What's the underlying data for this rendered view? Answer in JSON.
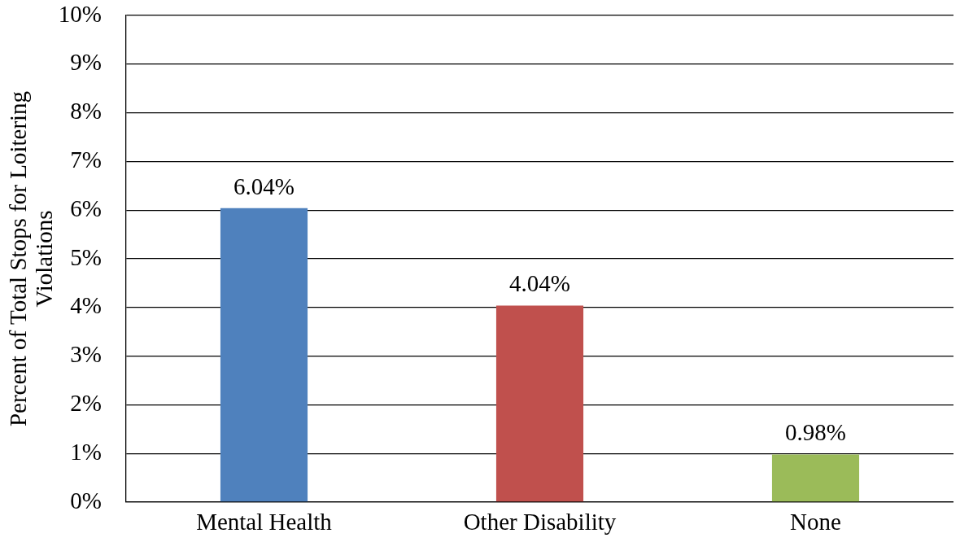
{
  "chart_data": {
    "type": "bar",
    "ylabel": "Percent of Total Stops for Loitering\nViolations",
    "categories": [
      "Mental Health",
      "Other Disability",
      "None"
    ],
    "values": [
      6.04,
      4.04,
      0.98
    ],
    "colors": [
      "#4f81bd",
      "#c0504d",
      "#9bbb59"
    ],
    "value_labels": [
      "6.04%",
      "4.04%",
      "0.98%"
    ],
    "ylim": [
      0,
      10
    ],
    "yticks": [
      {
        "value": 0,
        "label": "0%"
      },
      {
        "value": 1,
        "label": "1%"
      },
      {
        "value": 2,
        "label": "2%"
      },
      {
        "value": 3,
        "label": "3%"
      },
      {
        "value": 4,
        "label": "4%"
      },
      {
        "value": 5,
        "label": "5%"
      },
      {
        "value": 6,
        "label": "6%"
      },
      {
        "value": 7,
        "label": "7%"
      },
      {
        "value": 8,
        "label": "8%"
      },
      {
        "value": 9,
        "label": "9%"
      },
      {
        "value": 10,
        "label": "10%"
      }
    ],
    "grid": "y"
  }
}
